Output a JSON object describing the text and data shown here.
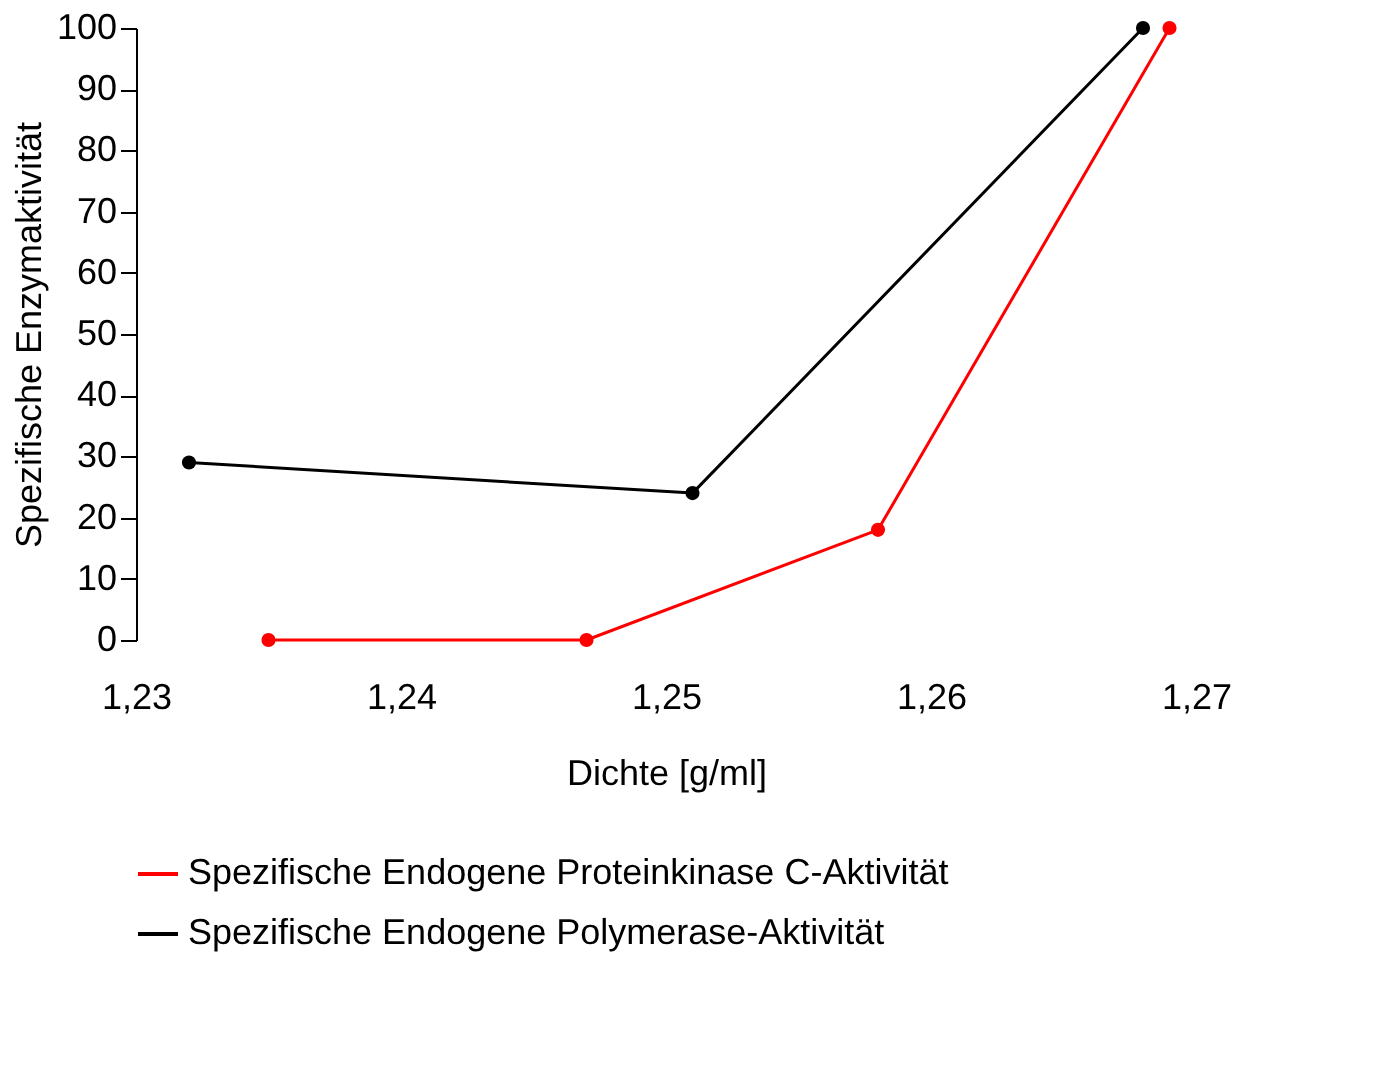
{
  "chart_data": {
    "type": "line",
    "xlabel": "Dichte [g/ml]",
    "ylabel": "Spezifische Enzymaktivität",
    "xlim": [
      1.23,
      1.27
    ],
    "xticks": [
      {
        "value": 1.23,
        "label": "1,23"
      },
      {
        "value": 1.24,
        "label": "1,24"
      },
      {
        "value": 1.25,
        "label": "1,25"
      },
      {
        "value": 1.26,
        "label": "1,26"
      },
      {
        "value": 1.27,
        "label": "1,27"
      }
    ],
    "ylim": [
      0,
      100
    ],
    "yticks": [
      0,
      10,
      20,
      30,
      40,
      50,
      60,
      70,
      80,
      90,
      100
    ],
    "series": [
      {
        "name": "Spezifische Endogene Proteinkinase C-Aktivität",
        "color": "#ff0000",
        "x": [
          1.235,
          1.247,
          1.258,
          1.269
        ],
        "values": [
          0,
          0,
          18,
          100
        ]
      },
      {
        "name": "Spezifische Endogene Polymerase-Aktivität",
        "color": "#000000",
        "x": [
          1.232,
          1.251,
          1.268
        ],
        "values": [
          29,
          24,
          100
        ]
      }
    ],
    "marker": "circle",
    "line_style": "solid",
    "grid": false,
    "legend": "bottom"
  }
}
